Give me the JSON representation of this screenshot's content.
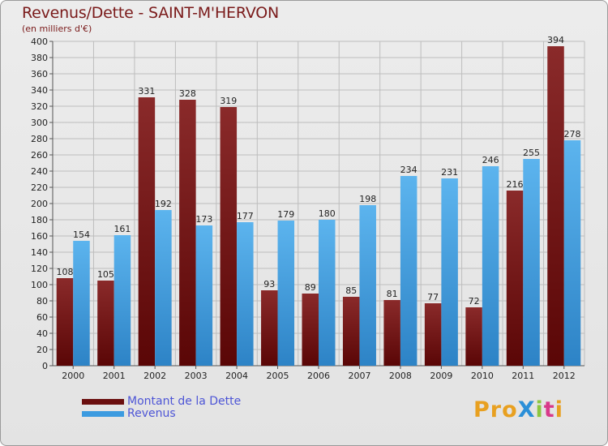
{
  "title": "Revenus/Dette - SAINT-M'HERVON",
  "subtitle": "(en milliers d'€)",
  "chart_data": {
    "type": "bar",
    "categories": [
      "2000",
      "2001",
      "2002",
      "2003",
      "2004",
      "2005",
      "2006",
      "2007",
      "2008",
      "2009",
      "2010",
      "2011",
      "2012"
    ],
    "series": [
      {
        "name": "Montant de la Dette",
        "color": "#7f1d1d",
        "values": [
          108,
          105,
          331,
          328,
          319,
          93,
          89,
          85,
          81,
          77,
          72,
          216,
          394
        ]
      },
      {
        "name": "Revenus",
        "color": "#4aa3e0",
        "values": [
          154,
          161,
          192,
          173,
          177,
          179,
          180,
          198,
          234,
          231,
          246,
          255,
          278
        ]
      }
    ],
    "ylim": [
      0,
      400
    ],
    "ytick_step": 20,
    "grid": true,
    "legend_position": "bottom-left"
  },
  "legend": [
    {
      "label": "Montant de la Dette",
      "color": "#6b0f0f"
    },
    {
      "label": "Revenus",
      "color": "#3c9be0"
    }
  ],
  "logo": {
    "text": "ProXiti",
    "letter_colors": [
      "#e8a020",
      "#e8a020",
      "#e8a020",
      "#2a8fd8",
      "#8cc63f",
      "#d83a8a",
      "#e8a020"
    ]
  }
}
